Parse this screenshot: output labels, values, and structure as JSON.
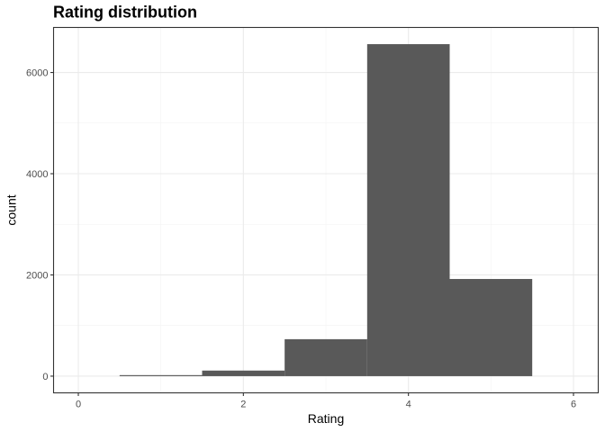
{
  "chart_data": {
    "type": "bar",
    "title": "Rating distribution",
    "xlabel": "Rating",
    "ylabel": "count",
    "x_bin_centers": [
      1,
      2,
      3,
      4,
      5
    ],
    "bin_width": 1,
    "values": [
      20,
      110,
      730,
      6560,
      1920
    ],
    "x_ticks": [
      0,
      2,
      4,
      6
    ],
    "y_ticks": [
      0,
      2000,
      4000,
      6000
    ],
    "xlim": [
      -0.3,
      6.3
    ],
    "ylim": [
      -330,
      6890
    ],
    "grid": true,
    "legend": "none",
    "bar_color": "#595959",
    "theme": "bw"
  }
}
